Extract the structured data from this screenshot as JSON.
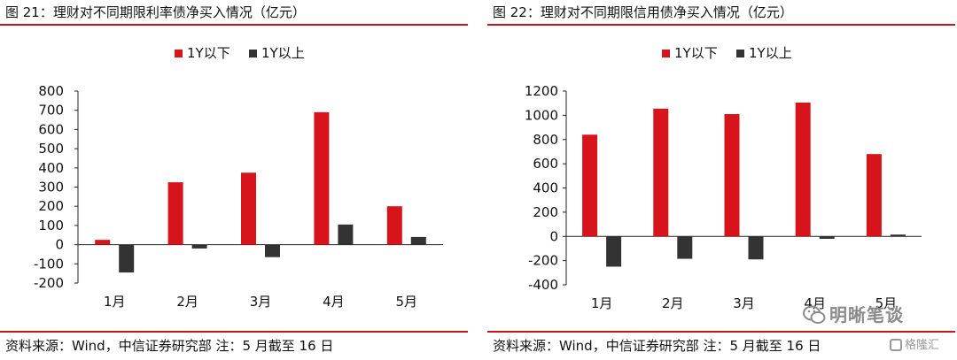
{
  "panels": [
    {
      "title": "图 21：理财对不同期限利率债净买入情况（亿元）",
      "source": "资料来源：Wind，中信证券研究部 注：5 月截至 16 日"
    },
    {
      "title": "图 22：理财对不同期限信用债净买入情况（亿元）",
      "source": "资料来源：Wind，中信证券研究部 注：5 月截至 16 日"
    }
  ],
  "colors": {
    "series_1y_below": "#d7141c",
    "series_1y_above": "#333333",
    "rule": "#c8161d"
  },
  "watermark": {
    "text": "明晰笔谈",
    "icon": "wechat-icon",
    "corner_logo": "格隆汇"
  },
  "chart_data": [
    {
      "type": "bar",
      "categories": [
        "1月",
        "2月",
        "3月",
        "4月",
        "5月"
      ],
      "series": [
        {
          "name": "1Y以下",
          "values": [
            25,
            325,
            375,
            690,
            200
          ]
        },
        {
          "name": "1Y以上",
          "values": [
            -145,
            -20,
            -65,
            105,
            40
          ]
        }
      ],
      "title": "",
      "xlabel": "",
      "ylabel": "",
      "ylim": [
        -200,
        800
      ],
      "yticks": [
        -200,
        -100,
        0,
        100,
        200,
        300,
        400,
        500,
        600,
        700,
        800
      ],
      "ytick_labels": [
        "-200",
        "-100",
        "0",
        "100",
        "200",
        "300",
        "400",
        "500",
        "600",
        "700",
        "800"
      ],
      "grid": false,
      "legend": "top-center"
    },
    {
      "type": "bar",
      "categories": [
        "1月",
        "2月",
        "3月",
        "4月",
        "5月"
      ],
      "series": [
        {
          "name": "1Y以下",
          "values": [
            840,
            1055,
            1010,
            1105,
            680
          ]
        },
        {
          "name": "1Y以上",
          "values": [
            -250,
            -185,
            -190,
            -20,
            15
          ]
        }
      ],
      "title": "",
      "xlabel": "",
      "ylabel": "",
      "ylim": [
        -400,
        1200
      ],
      "yticks": [
        -400,
        -200,
        0,
        200,
        400,
        600,
        800,
        1000,
        1200
      ],
      "ytick_labels": [
        "-400",
        "-200",
        "0",
        "200",
        "400",
        "600",
        "800",
        "1000",
        "1200"
      ],
      "grid": false,
      "legend": "top-center"
    }
  ]
}
